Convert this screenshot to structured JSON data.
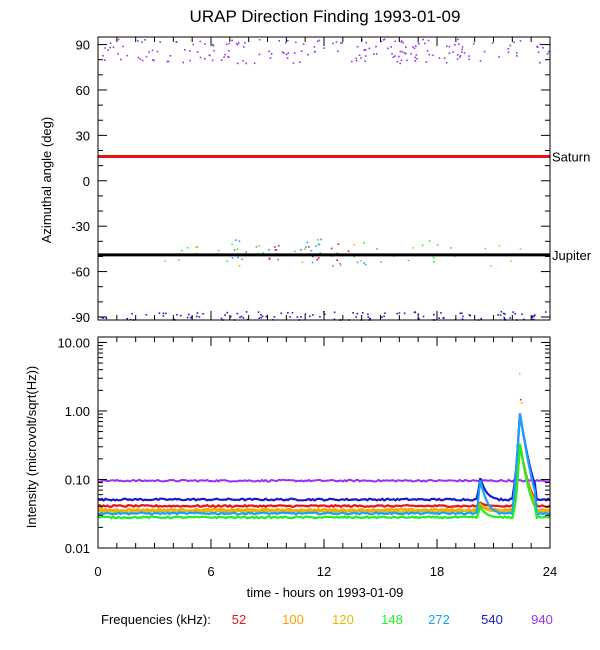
{
  "chart_data": [
    {
      "type": "scatter",
      "title": "URAP Direction Finding  1993-01-09",
      "ylabel": "Azimuthal angle (deg)",
      "xlim": [
        0,
        24
      ],
      "ylim": [
        -92,
        95
      ],
      "yticks": [
        90,
        60,
        30,
        0,
        -30,
        -60,
        -90
      ],
      "grid": false,
      "reference_lines": [
        {
          "name": "Saturn",
          "y": 16,
          "color": "#ee1111"
        },
        {
          "name": "Jupiter",
          "y": -49,
          "color": "#000000"
        }
      ],
      "point_groups": [
        {
          "frequency_khz": 940,
          "y_center": 86,
          "y_spread": 8,
          "count": 190,
          "x_range": [
            0,
            24
          ]
        },
        {
          "frequency_khz": 540,
          "y_center": -89,
          "y_spread": 3,
          "count": 120,
          "x_range": [
            0,
            24
          ]
        },
        {
          "frequency_khz": 148,
          "y_center": -46,
          "y_spread": 8,
          "count": 30,
          "x_range": [
            3,
            19
          ]
        },
        {
          "frequency_khz": 120,
          "y_center": -48,
          "y_spread": 8,
          "count": 20,
          "x_range": [
            3,
            23
          ]
        },
        {
          "frequency_khz": 272,
          "y_center": -47,
          "y_spread": 10,
          "count": 25,
          "x_range": [
            7,
            15
          ]
        },
        {
          "frequency_khz": 52,
          "y_center": -46,
          "y_spread": 6,
          "count": 16,
          "x_range": [
            9,
            14
          ]
        }
      ]
    },
    {
      "type": "line",
      "ylabel": "Intensity (microvolt/sqrt(Hz))",
      "xlabel": "time - hours on 1993-01-09",
      "xlim": [
        0,
        24
      ],
      "xticks": [
        0,
        6,
        12,
        18,
        24
      ],
      "yscale": "log",
      "ylim": [
        0.01,
        12
      ],
      "yticks": [
        "10.00",
        "1.00",
        "0.10",
        "0.01"
      ],
      "grid": false,
      "series": [
        {
          "frequency_khz": 940,
          "color": "#9a30f0",
          "level": 0.096
        },
        {
          "frequency_khz": 540,
          "color": "#1a1acc",
          "level": 0.051
        },
        {
          "frequency_khz": 52,
          "color": "#ee1111",
          "level": 0.041
        },
        {
          "frequency_khz": 100,
          "color": "#ffa000",
          "level": 0.036
        },
        {
          "frequency_khz": 120,
          "color": "#e6b800",
          "level": 0.034
        },
        {
          "frequency_khz": 272,
          "color": "#1aa0ff",
          "level": 0.032
        },
        {
          "frequency_khz": 148,
          "color": "#22ee22",
          "level": 0.028
        }
      ],
      "events": [
        {
          "x": 20.3,
          "peak": 0.14
        },
        {
          "x": 22.2,
          "peak": 0.2
        },
        {
          "x": 22.4,
          "peak": 1.5
        }
      ]
    }
  ],
  "frequencies_legend": {
    "label": "Frequencies (kHz):",
    "items": [
      {
        "value": "52",
        "color": "#ee1111"
      },
      {
        "value": "100",
        "color": "#ffa000"
      },
      {
        "value": "120",
        "color": "#e6b800"
      },
      {
        "value": "148",
        "color": "#22ee22"
      },
      {
        "value": "272",
        "color": "#1aa0ff"
      },
      {
        "value": "540",
        "color": "#1a1acc"
      },
      {
        "value": "940",
        "color": "#9a30f0"
      }
    ]
  }
}
